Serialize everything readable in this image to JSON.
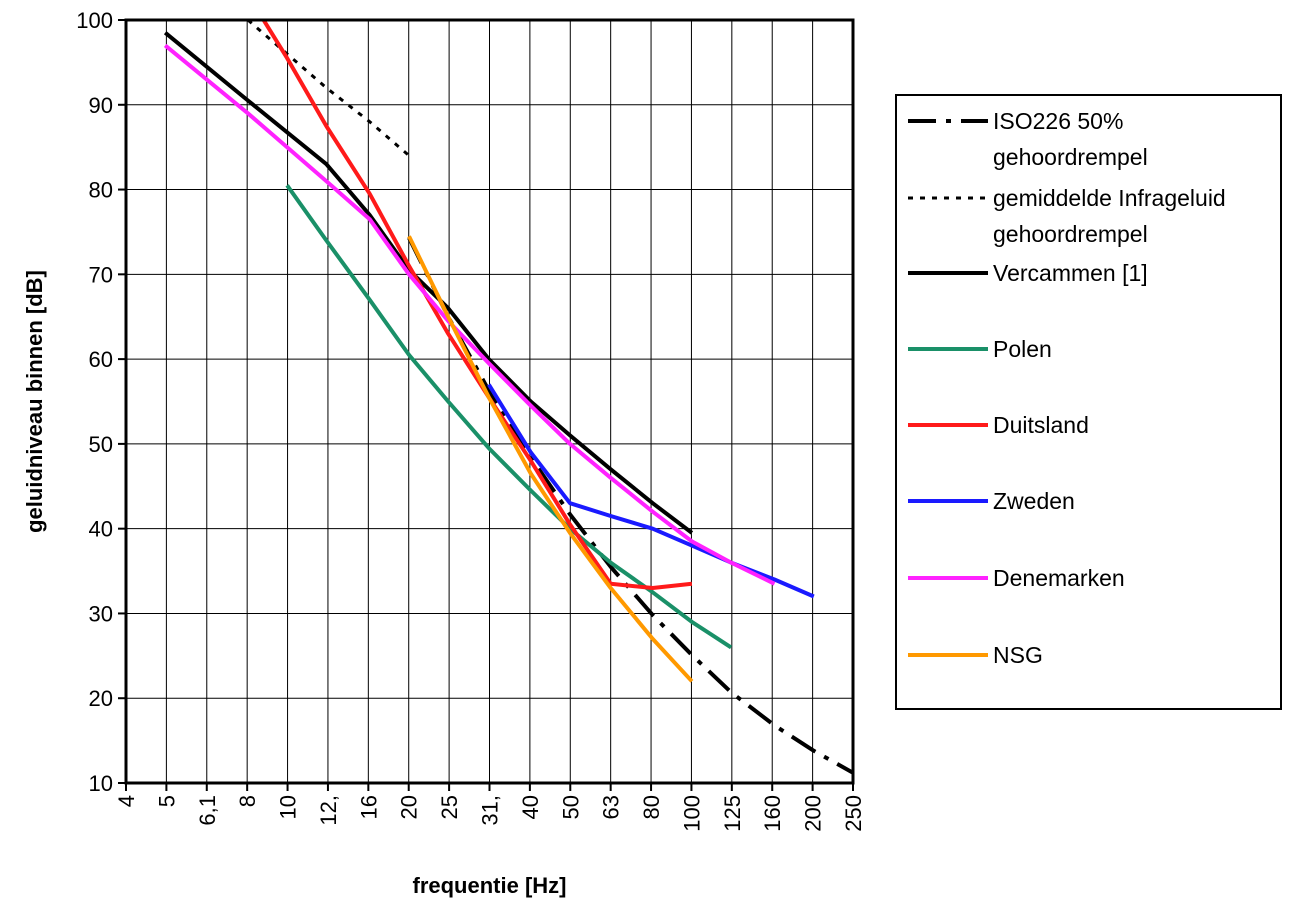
{
  "chart_data": {
    "type": "line",
    "xlabel": "frequentie [Hz]",
    "ylabel": "geluidniveau binnen [dB]",
    "x_scale": "log",
    "x_ticks": [
      "4",
      "5",
      "6,1",
      "8",
      "10",
      "12,",
      "16",
      "20",
      "25",
      "31,",
      "40",
      "50",
      "63",
      "80",
      "100",
      "125",
      "160",
      "200",
      "250"
    ],
    "ylim": [
      10,
      100
    ],
    "y_ticks": [
      "10",
      "20",
      "30",
      "40",
      "50",
      "60",
      "70",
      "80",
      "90",
      "100"
    ],
    "grid": true,
    "legend_position": "right",
    "series": [
      {
        "name": "ISO226 50% gehoordrempel",
        "legend_lines": [
          "ISO226 50%",
          "gehoordrempel"
        ],
        "color": "#000000",
        "line_style": "dash-dot",
        "x": [
          20,
          25,
          31.5,
          40,
          50,
          63,
          80,
          100,
          125,
          160,
          200,
          250
        ],
        "y": [
          74.3,
          65,
          56.3,
          48.4,
          41.7,
          35.5,
          29.8,
          25.1,
          20.7,
          16.8,
          13.8,
          11.2
        ]
      },
      {
        "name": "gemiddelde Infrageluid gehoordrempel",
        "legend_lines": [
          "gemiddelde Infrageluid",
          "gehoordrempel"
        ],
        "color": "#000000",
        "line_style": "dotted",
        "x": [
          8,
          10,
          12.5,
          16,
          20
        ],
        "y": [
          100,
          96,
          92,
          88,
          84
        ]
      },
      {
        "name": "Vercammen [1]",
        "legend_lines": [
          "Vercammen [1]"
        ],
        "color": "#000000",
        "line_style": "solid",
        "x": [
          5,
          8,
          12.5,
          16,
          20,
          25,
          31.5,
          40,
          50,
          63,
          80,
          100
        ],
        "y": [
          98.5,
          90.5,
          83,
          77,
          70.5,
          66,
          60,
          55,
          51,
          47,
          43,
          39.5
        ]
      },
      {
        "name": "Polen",
        "legend_lines": [
          "Polen"
        ],
        "color": "#1a9068",
        "line_style": "solid",
        "x": [
          10,
          12.5,
          16,
          20,
          25,
          31.5,
          40,
          50,
          63,
          80,
          100,
          125
        ],
        "y": [
          80.5,
          74,
          67,
          60.5,
          55,
          49.5,
          44.5,
          40,
          36,
          32.5,
          29,
          26
        ]
      },
      {
        "name": "Duitsland",
        "legend_lines": [
          "Duitsland"
        ],
        "color": "#ff1a1a",
        "line_style": "solid",
        "x": [
          8,
          10,
          12.5,
          16,
          20,
          25,
          31.5,
          40,
          50,
          63,
          80,
          100
        ],
        "y": [
          103,
          95.5,
          87.5,
          79.5,
          71,
          63,
          55.5,
          48,
          40.5,
          33.5,
          33,
          33.5
        ]
      },
      {
        "name": "Zweden",
        "legend_lines": [
          "Zweden"
        ],
        "color": "#1a1aff",
        "line_style": "solid",
        "x": [
          31.5,
          40,
          50,
          63,
          80,
          100,
          125,
          160,
          200
        ],
        "y": [
          57,
          49,
          43,
          41.5,
          40,
          38,
          36,
          34,
          32
        ]
      },
      {
        "name": "Denemarken",
        "legend_lines": [
          "Denemarken"
        ],
        "color": "#ff22ff",
        "line_style": "solid",
        "x": [
          5,
          8,
          12.5,
          16,
          20,
          25,
          31.5,
          40,
          50,
          63,
          80,
          100,
          125,
          160
        ],
        "y": [
          97,
          89,
          81,
          76.5,
          70,
          64.5,
          59.5,
          54.5,
          50,
          46,
          42,
          38.5,
          36,
          33.5
        ]
      },
      {
        "name": "NSG",
        "legend_lines": [
          "NSG"
        ],
        "color": "#ff9900",
        "line_style": "solid",
        "x": [
          20,
          25,
          31.5,
          40,
          50,
          63,
          80,
          100
        ],
        "y": [
          74.5,
          65,
          55.5,
          46.5,
          39.5,
          33,
          27,
          22
        ]
      }
    ]
  }
}
